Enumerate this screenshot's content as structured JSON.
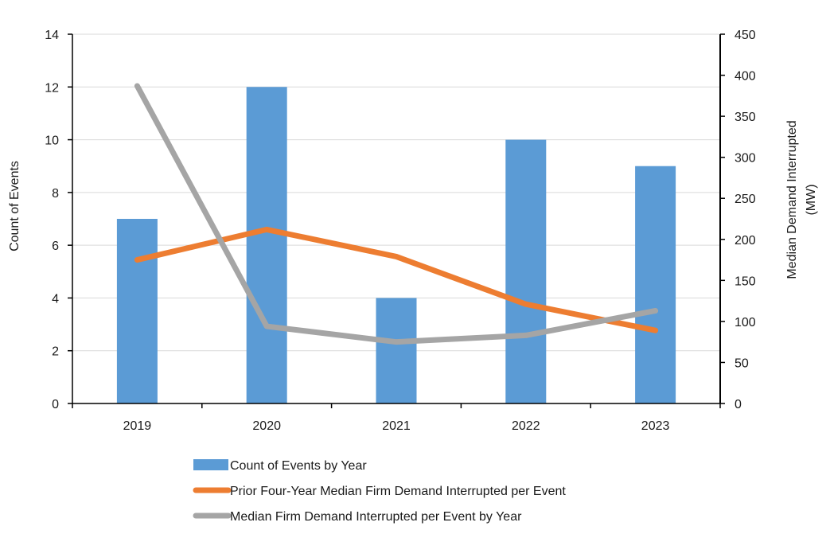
{
  "chart_data": {
    "type": "bar+line",
    "categories": [
      "2019",
      "2020",
      "2021",
      "2022",
      "2023"
    ],
    "y_left": {
      "label": "Count of Events",
      "ticks": [
        "0",
        "2",
        "4",
        "6",
        "8",
        "10",
        "12",
        "14"
      ],
      "range": [
        0,
        14
      ]
    },
    "y_right": {
      "label_lines": [
        "Median Demand Interrupted",
        "(MW)"
      ],
      "ticks": [
        "0",
        "50",
        "100",
        "150",
        "200",
        "250",
        "300",
        "350",
        "400",
        "450"
      ],
      "range": [
        0,
        450
      ]
    },
    "gridlines": "horizontal",
    "legend_position": "bottom",
    "series": [
      {
        "name": "Count of Events by Year",
        "kind": "bar",
        "axis": "left",
        "color": "#5b9bd5",
        "values": [
          7,
          12,
          4,
          10,
          9
        ]
      },
      {
        "name": "Prior Four-Year Median Firm Demand Interrupted per Event",
        "kind": "line",
        "axis": "right",
        "color": "#ed7d31",
        "values": [
          175,
          212,
          179,
          121,
          89
        ]
      },
      {
        "name": "Median Firm Demand Interrupted per Event by Year",
        "kind": "line",
        "axis": "right",
        "color": "#a5a5a5",
        "values": [
          387,
          94,
          75,
          83,
          113
        ]
      }
    ]
  }
}
